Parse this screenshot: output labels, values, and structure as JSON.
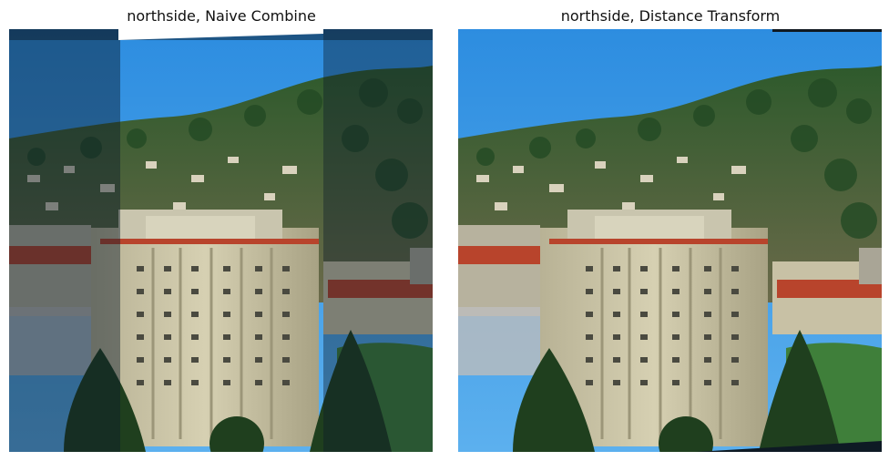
{
  "figure": {
    "panels": [
      {
        "title": "northside, Naive Combine",
        "image_type": "photo-mosaic"
      },
      {
        "title": "northside, Distance Transform",
        "image_type": "photo-mosaic"
      }
    ]
  },
  "colors": {
    "sky": "#2f93e0",
    "sky_dark": "#1e3b57",
    "trees": "#2f5a2f",
    "building": "#c9c3a6",
    "roof_tile": "#b8442c"
  }
}
